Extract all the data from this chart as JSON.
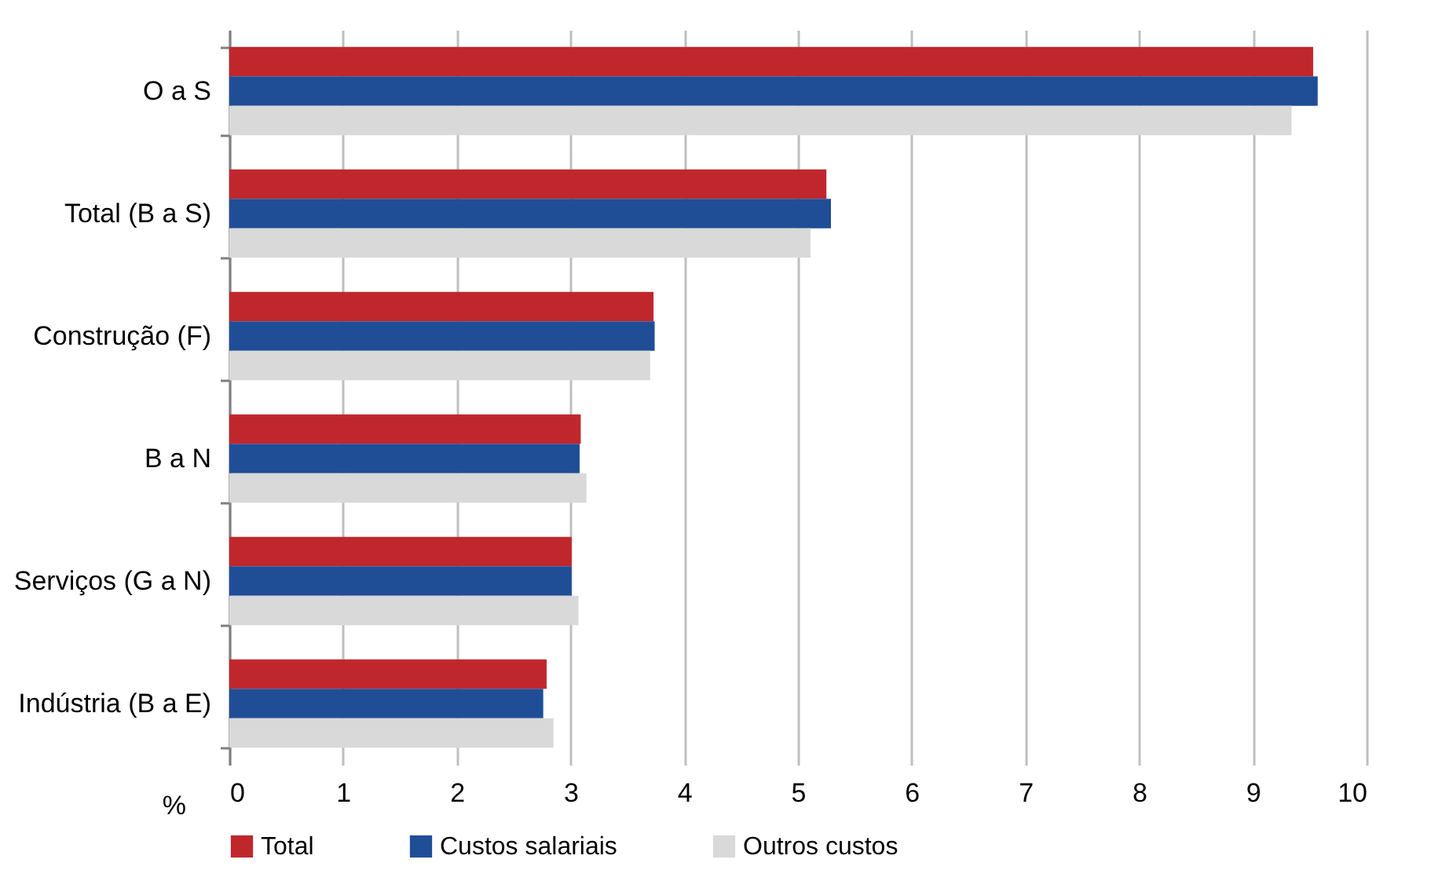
{
  "chart_data": {
    "type": "bar",
    "orientation": "horizontal",
    "xlabel": "%",
    "categories": [
      "O a S",
      "Total (B a S)",
      "Construção (F)",
      "B a N",
      "Serviços (G a N)",
      "Indústria (B a E)"
    ],
    "series": [
      {
        "name": "Total",
        "color": "#c0272d",
        "values": [
          9.53,
          5.25,
          3.73,
          3.09,
          3.01,
          2.79
        ]
      },
      {
        "name": "Custos salariais",
        "color": "#1f4e96",
        "values": [
          9.57,
          5.29,
          3.74,
          3.08,
          3.01,
          2.76
        ]
      },
      {
        "name": "Outros custos",
        "color": "#d9d9d9",
        "values": [
          9.34,
          5.11,
          3.7,
          3.14,
          3.07,
          2.85
        ]
      }
    ],
    "xlim": [
      0,
      10
    ],
    "xticks": [
      0,
      1,
      2,
      3,
      4,
      5,
      6,
      7,
      8,
      9,
      10
    ],
    "grid": "x",
    "legend": "bottom"
  }
}
